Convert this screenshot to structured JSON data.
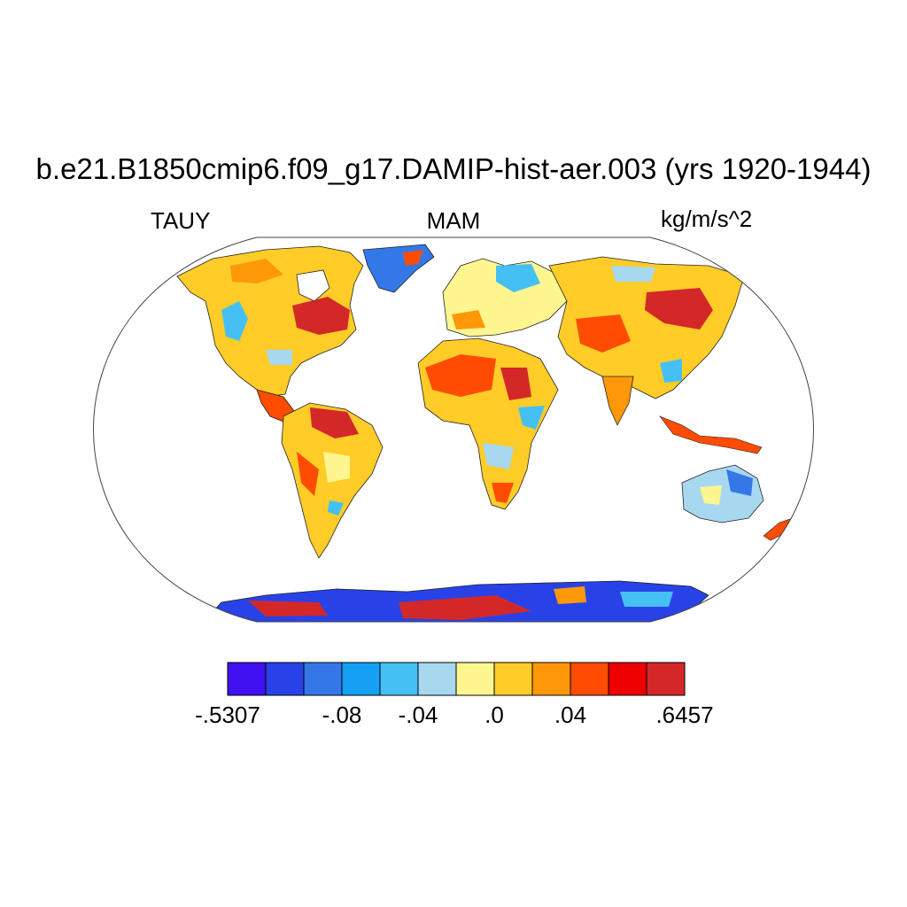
{
  "title": "b.e21.B1850cmip6.f09_g17.DAMIP-hist-aer.003 (yrs 1920-1944)",
  "left_label": "TAUY",
  "center_label": "MAM",
  "right_label": "kg/m/s^2",
  "colorbar": {
    "colors": [
      "#4010f0",
      "#2842e8",
      "#3478e8",
      "#14a0f4",
      "#44c0f4",
      "#a8d8f0",
      "#fff690",
      "#ffcc28",
      "#ff9808",
      "#ff4c00",
      "#ec0000",
      "#d42828"
    ],
    "labels": [
      "-.5307",
      "-.08",
      "-.04",
      ".0",
      ".04",
      ".6457"
    ],
    "label_boundaries": [
      0,
      3,
      5,
      7,
      9,
      12
    ]
  }
}
